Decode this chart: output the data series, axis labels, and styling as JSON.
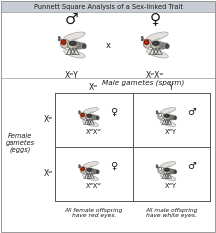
{
  "title": "Punnett Square Analysis of a Sex-linked Trait",
  "title_fontsize": 5.0,
  "header_bg": "#c8ccd4",
  "parent_male_label": "♂",
  "parent_female_label": "♀",
  "parent_male_genotype": "XʷY",
  "parent_female_genotype": "XʷXʷ",
  "male_gametes_label": "Male gametes (sperm)",
  "female_gametes_label": "Female\ngametes\n(eggs)",
  "col_header_left": "Xʷ",
  "col_header_right": "Y",
  "row_header_top": "Xʷ",
  "row_header_bottom": "Xʷ",
  "cell_tl_genotype": "XʷXʷ",
  "cell_tr_genotype": "XʷY",
  "cell_bl_genotype": "XʷXʷ",
  "cell_br_genotype": "XʷY",
  "cell_tl_sex": "♀",
  "cell_tr_sex": "♂",
  "cell_bl_sex": "♀",
  "cell_br_sex": "♂",
  "bottom_left_text": "All female offspring\nhave red eyes.",
  "bottom_right_text": "All male offspring\nhave white eyes.",
  "white_color": "#ffffff",
  "light_gray": "#f0f0f0",
  "body_color": "#c8c4b8",
  "wing_color": "#e0ddd8",
  "stripe_color": "#555555",
  "dark_color": "#1a1a1a",
  "red_color": "#cc2200",
  "black_patch": "#222222",
  "border_color": "#999999"
}
